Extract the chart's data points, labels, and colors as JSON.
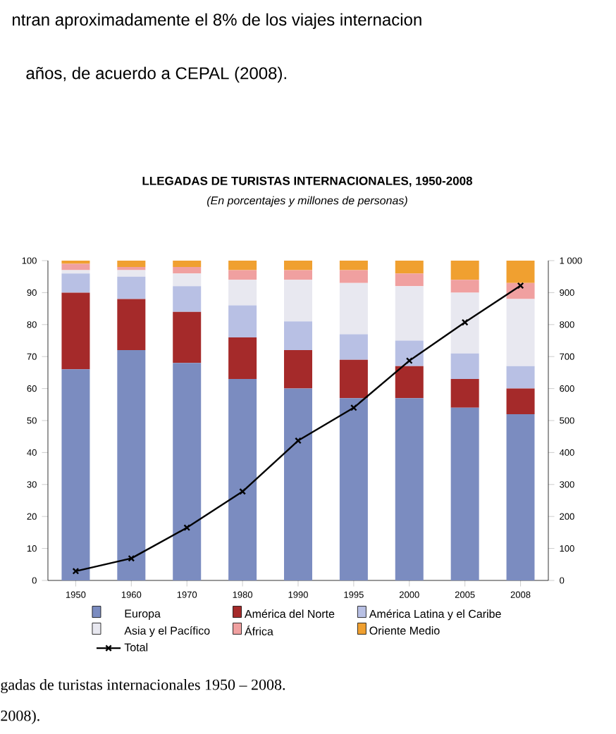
{
  "chart_data": {
    "type": "bar",
    "stacked": true,
    "title": "LLEGADAS DE TURISTAS INTERNACIONALES, 1950-2008",
    "subtitle": "(En porcentajes y millones de personas)",
    "categories": [
      "1950",
      "1960",
      "1970",
      "1980",
      "1990",
      "1995",
      "2000",
      "2005",
      "2008"
    ],
    "series": [
      {
        "name": "Europa",
        "color": "#7b8cc0",
        "values": [
          66,
          72,
          68,
          63,
          60,
          57,
          57,
          54,
          52
        ]
      },
      {
        "name": "América del Norte",
        "color": "#a52a2a",
        "values": [
          24,
          16,
          16,
          13,
          12,
          12,
          10,
          9,
          8
        ]
      },
      {
        "name": "América Latina y el Caribe",
        "color": "#b8c0e4",
        "values": [
          6,
          7,
          8,
          10,
          9,
          8,
          8,
          8,
          7
        ]
      },
      {
        "name": "Asia y el Pacífico",
        "color": "#e8e8f0",
        "values": [
          1,
          2,
          4,
          8,
          13,
          16,
          17,
          19,
          21
        ]
      },
      {
        "name": "África",
        "color": "#f0a0a0",
        "values": [
          2,
          1,
          2,
          3,
          3,
          4,
          4,
          4,
          5
        ]
      },
      {
        "name": "Oriente Medio",
        "color": "#f0a030",
        "values": [
          1,
          2,
          2,
          3,
          3,
          3,
          4,
          6,
          7
        ]
      },
      {
        "name": "Total",
        "color": "#000000",
        "type": "line",
        "axis": "y2",
        "marker": "cross",
        "values": [
          29,
          69,
          165,
          278,
          437,
          540,
          687,
          807,
          922
        ]
      }
    ],
    "ylim": [
      0,
      100
    ],
    "yticks": [
      0,
      10,
      20,
      30,
      40,
      50,
      60,
      70,
      80,
      90,
      100
    ],
    "y2lim": [
      0,
      1000
    ],
    "y2ticks": [
      0,
      100,
      200,
      300,
      400,
      500,
      600,
      700,
      800,
      900,
      {
        "value": 1000,
        "label": "1 000"
      }
    ],
    "legend": "bottom",
    "annotations": [
      "ntran aproximadamente el 8% de los viajes internacion",
      "años, de acuerdo a CEPAL (2008).",
      "gadas de turistas internacionales 1950 – 2008.",
      "2008)."
    ]
  }
}
